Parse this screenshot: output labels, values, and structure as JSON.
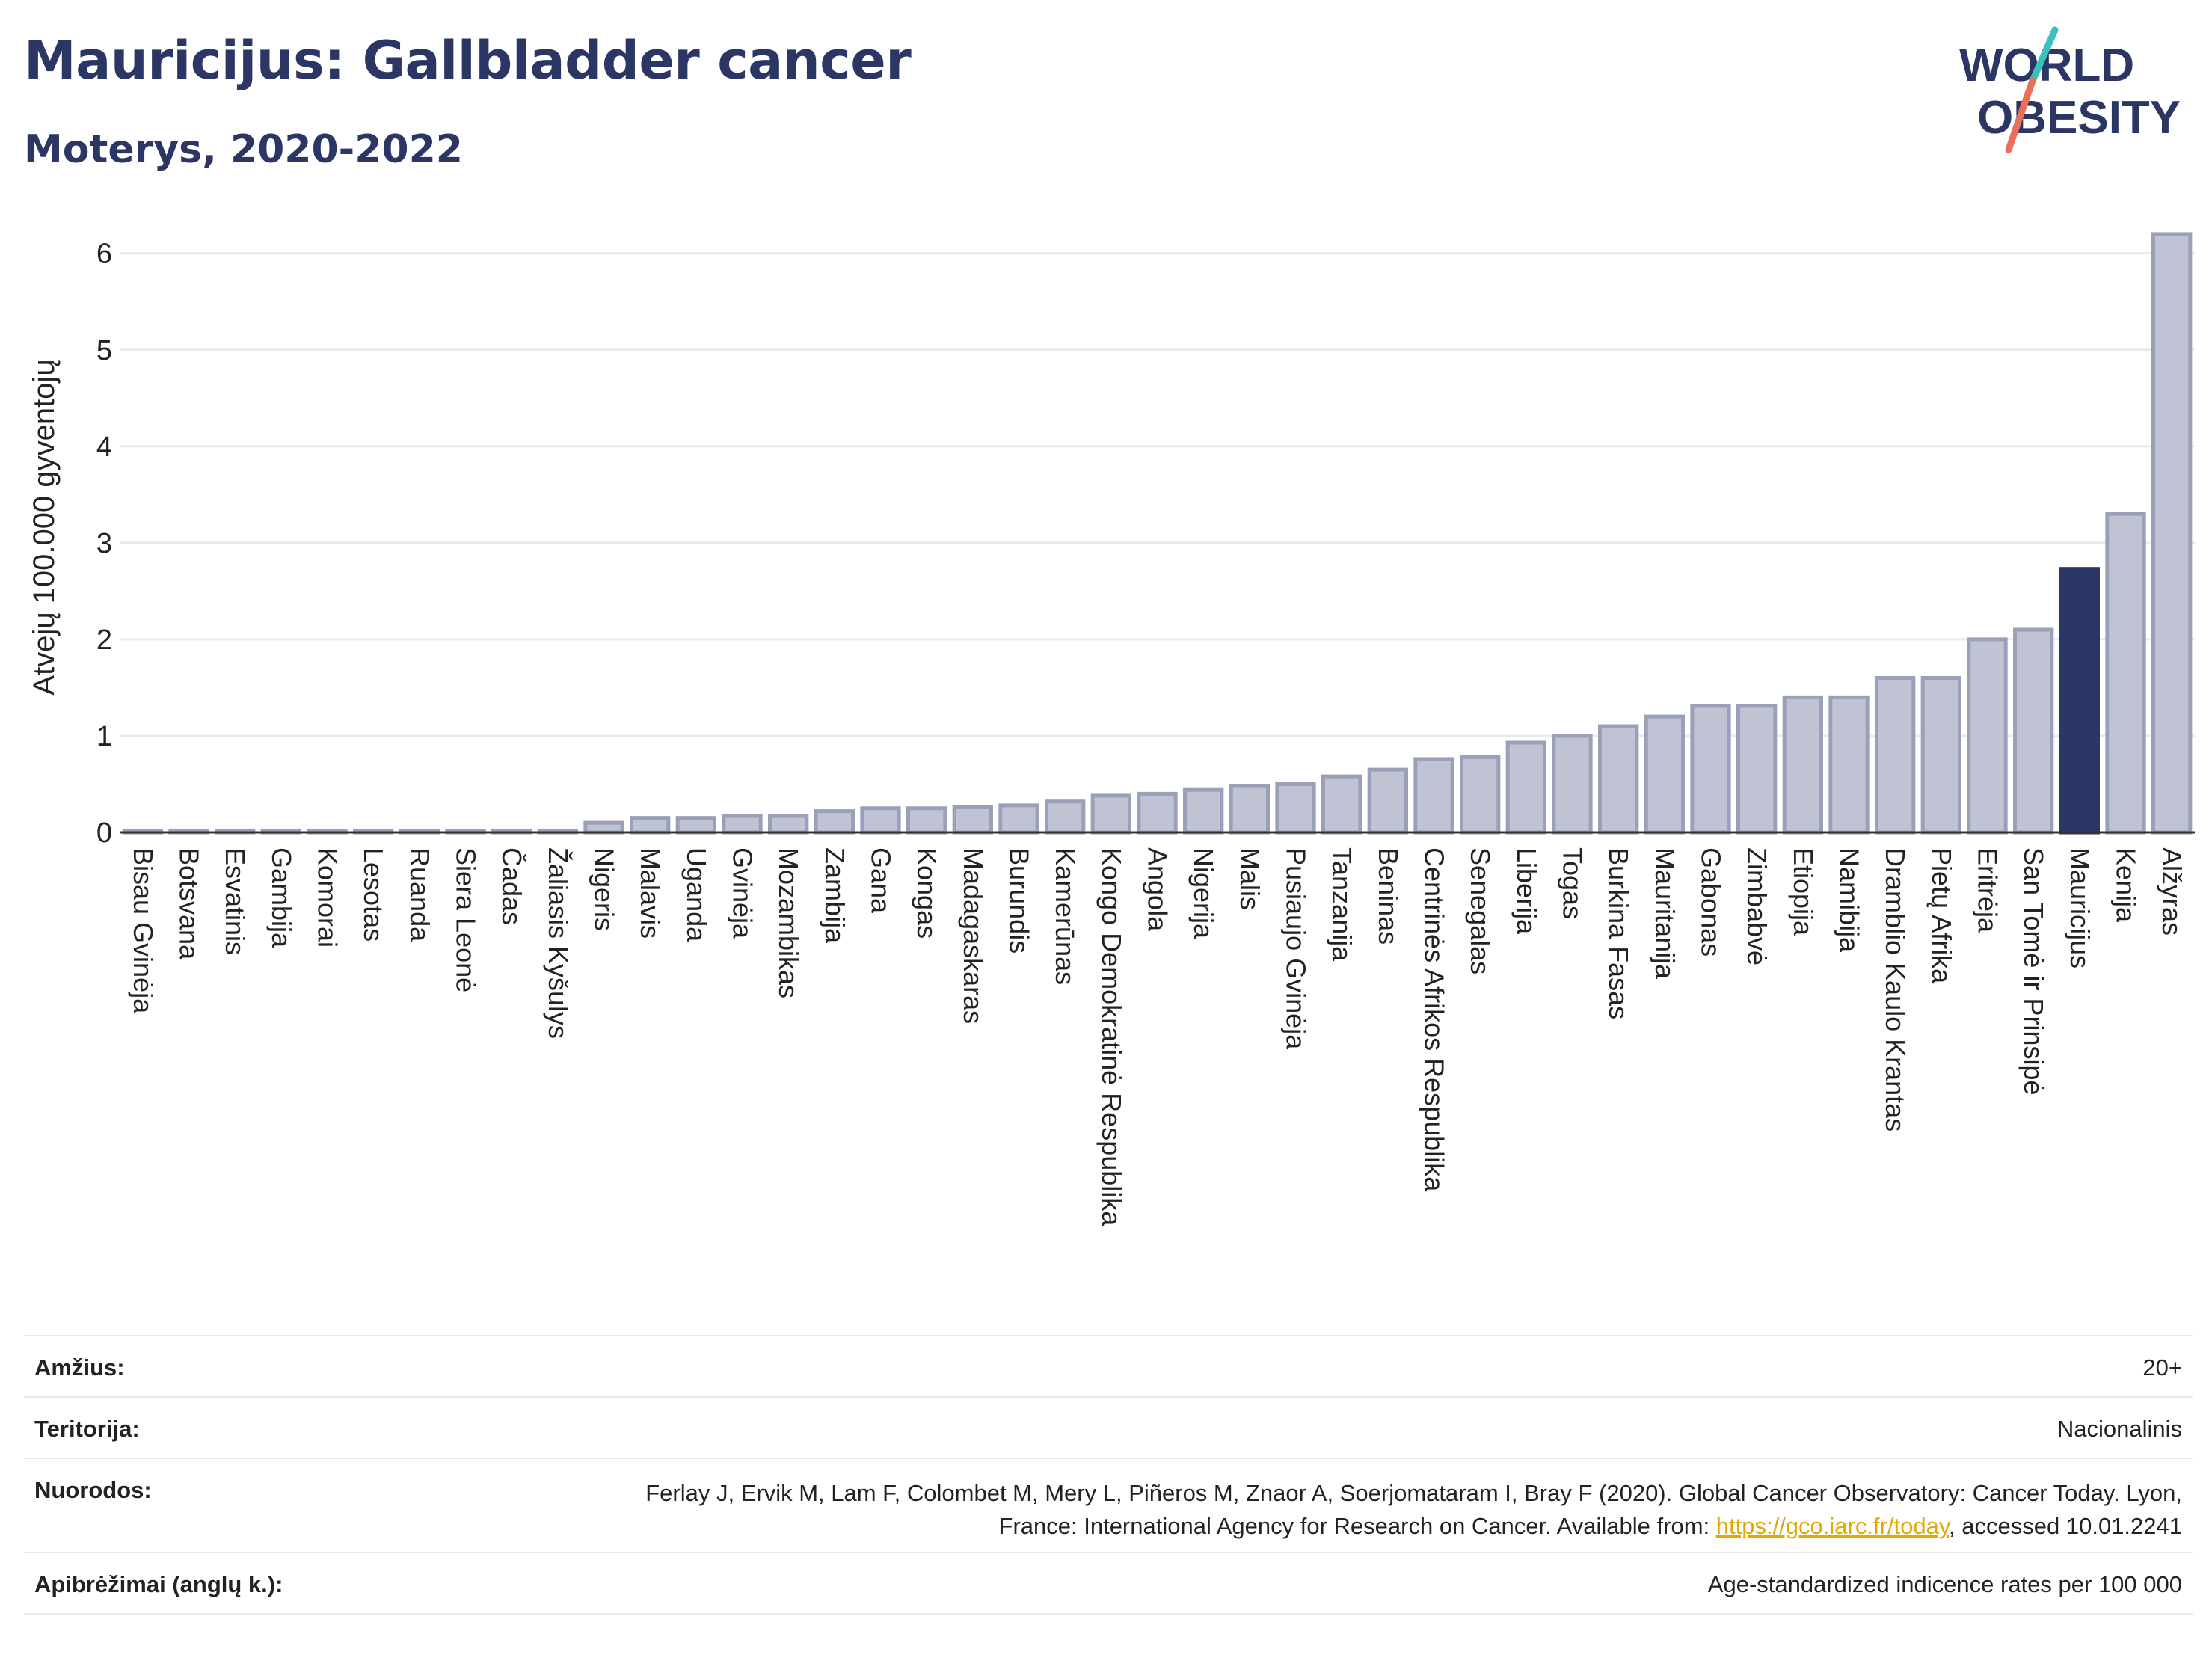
{
  "header": {
    "title": "Mauricijus: Gallbladder cancer",
    "subtitle": "Moterys, 2020-2022"
  },
  "logo": {
    "line1": "WORLD",
    "line2": "OBESITY",
    "slash_teal": "#3bbfbf",
    "slash_coral": "#e8705a",
    "text_color": "#2b3664"
  },
  "colors": {
    "bar_default": "#bfc3d3",
    "bar_edge": "#9aa0b8",
    "bar_highlight": "#2b3664",
    "grid": "#e8eaf0",
    "axis": "#333333",
    "link": "#e0a800"
  },
  "chart_data": {
    "type": "bar",
    "title": "Mauricijus: Gallbladder cancer",
    "subtitle": "Moterys, 2020-2022",
    "xlabel": "",
    "ylabel": "Atvejų 100.000 gyventojų",
    "ylim": [
      0,
      6.3
    ],
    "yticks": [
      0,
      1,
      2,
      3,
      4,
      5,
      6
    ],
    "grid": true,
    "highlight": "Mauricijus",
    "categories": [
      "Bisau Gvinėja",
      "Botsvana",
      "Esvatinis",
      "Gambija",
      "Komorai",
      "Lesotas",
      "Ruanda",
      "Siera Leonė",
      "Čadas",
      "Žaliasis Kyšulys",
      "Nigeris",
      "Malavis",
      "Uganda",
      "Gvinėja",
      "Mozambikas",
      "Zambija",
      "Gana",
      "Kongas",
      "Madagaskaras",
      "Burundis",
      "Kamerūnas",
      "Kongo Demokratinė Respublika",
      "Angola",
      "Nigerija",
      "Malis",
      "Pusiaujo Gvinėja",
      "Tanzanija",
      "Beninas",
      "Centrinės Afrikos Respublika",
      "Senegalas",
      "Liberija",
      "Togas",
      "Burkina Fasas",
      "Mauritanija",
      "Gabonas",
      "Zimbabvė",
      "Etiopija",
      "Namibija",
      "Dramblio Kaulo Krantas",
      "Pietų Afrika",
      "Eritrėja",
      "San Tomė ir Prinsipė",
      "Mauricijus",
      "Kenija",
      "Alžyras"
    ],
    "values": [
      0.02,
      0.02,
      0.02,
      0.02,
      0.02,
      0.02,
      0.02,
      0.02,
      0.02,
      0.02,
      0.1,
      0.15,
      0.15,
      0.17,
      0.17,
      0.22,
      0.25,
      0.25,
      0.26,
      0.28,
      0.32,
      0.38,
      0.4,
      0.44,
      0.48,
      0.5,
      0.58,
      0.65,
      0.76,
      0.78,
      0.93,
      1.0,
      1.1,
      1.2,
      1.31,
      1.31,
      1.4,
      1.4,
      1.6,
      1.6,
      2.0,
      2.1,
      2.73,
      3.3,
      6.2
    ]
  },
  "footer": {
    "age_label": "Amžius:",
    "age_value": "20+",
    "territory_label": "Teritorija:",
    "territory_value": "Nacionalinis",
    "refs_label": "Nuorodos:",
    "refs_text_1": "Ferlay J, Ervik M, Lam F, Colombet M, Mery L, Piñeros M, Znaor A, Soerjomataram I, Bray F (2020). Global Cancer Observatory: Cancer Today. Lyon, France: International Agency for Research on Cancer. Available from: ",
    "refs_link": "https://gco.iarc.fr/today",
    "refs_text_2": ", accessed 10.01.2241",
    "defs_label": "Apibrėžimai (anglų k.):",
    "defs_value": "Age-standardized indicence rates per 100 000"
  }
}
